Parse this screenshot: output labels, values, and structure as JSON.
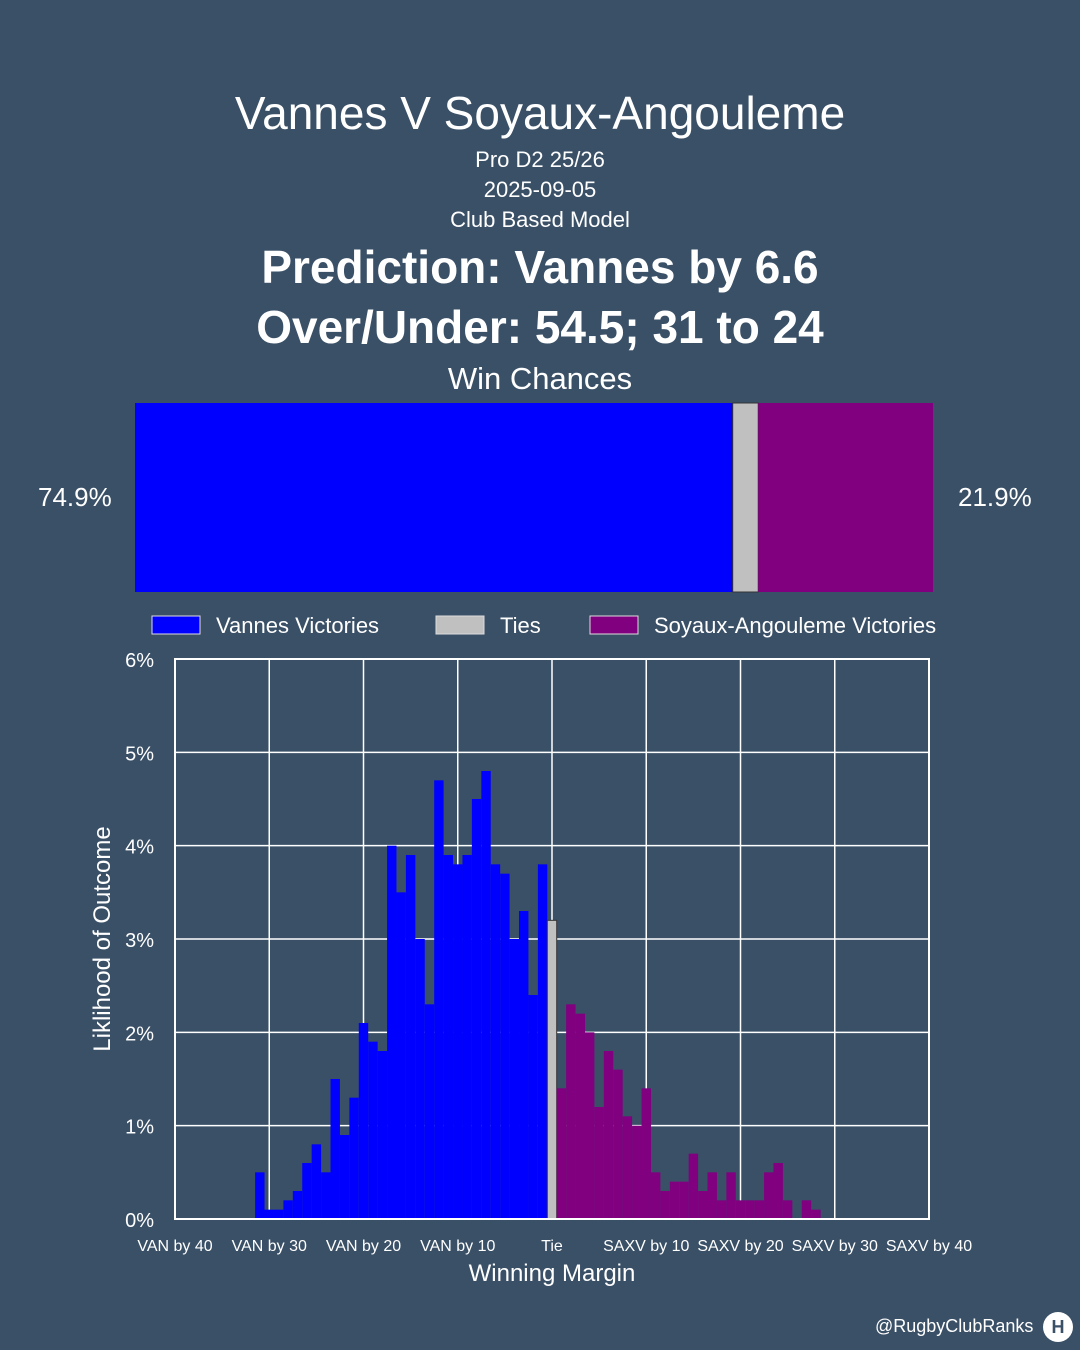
{
  "header": {
    "title": "Vannes V Soyaux-Angouleme",
    "competition": "Pro D2 25/26",
    "date": "2025-09-05",
    "model": "Club Based Model",
    "prediction": "Prediction: Vannes by 6.6",
    "over_under": "Over/Under: 54.5; 31 to 24"
  },
  "footer": {
    "handle": "@RugbyClubRanks",
    "logo_icon": "rugby-posts-icon"
  },
  "colors": {
    "background": "#3a5067",
    "home": "#0000ff",
    "tie": "#c0c0c0",
    "away": "#800080"
  },
  "chart_data": [
    {
      "type": "bar",
      "title": "Win Chances",
      "orientation": "horizontal-stacked",
      "segments": [
        {
          "name": "Vannes Victories",
          "value": 74.9,
          "label": "74.9%",
          "color": "#0000ff"
        },
        {
          "name": "Ties",
          "value": 3.2,
          "color": "#c0c0c0"
        },
        {
          "name": "Soyaux-Angouleme Victories",
          "value": 21.9,
          "label": "21.9%",
          "color": "#800080"
        }
      ],
      "legend": [
        "Vannes Victories",
        "Ties",
        "Soyaux-Angouleme Victories"
      ],
      "legend_placement": "bottom"
    },
    {
      "type": "bar",
      "xlabel": "Winning Margin",
      "ylabel": "Liklihood of Outcome",
      "xlim": [
        -40,
        40
      ],
      "ylim": [
        0,
        6
      ],
      "grid": true,
      "x_ticks": [
        -40,
        -30,
        -20,
        -10,
        0,
        10,
        20,
        30,
        40
      ],
      "x_tick_labels": [
        "VAN by 40",
        "VAN by 30",
        "VAN by 20",
        "VAN by 10",
        "Tie",
        "SAXV by 10",
        "SAXV by 20",
        "SAXV by 30",
        "SAXV by 40"
      ],
      "y_ticks": [
        0,
        1,
        2,
        3,
        4,
        5,
        6
      ],
      "y_tick_labels": [
        "0%",
        "1%",
        "2%",
        "3%",
        "4%",
        "5%",
        "6%"
      ],
      "series": [
        {
          "name": "Vannes Victories",
          "color": "#0000ff",
          "x": [
            -31,
            -30,
            -29,
            -28,
            -27,
            -26,
            -25,
            -24,
            -23,
            -22,
            -21,
            -20,
            -19,
            -18,
            -17,
            -16,
            -15,
            -14,
            -13,
            -12,
            -11,
            -10,
            -9,
            -8,
            -7,
            -6,
            -5,
            -4,
            -3,
            -2,
            -1
          ],
          "values": [
            0.5,
            0.1,
            0.1,
            0.2,
            0.3,
            0.6,
            0.8,
            0.5,
            1.5,
            0.9,
            1.3,
            2.1,
            1.9,
            1.8,
            4.0,
            3.5,
            3.9,
            3.0,
            2.3,
            4.7,
            3.9,
            3.8,
            3.9,
            4.5,
            4.8,
            3.8,
            3.7,
            3.0,
            3.3,
            2.4,
            3.8
          ]
        },
        {
          "name": "Ties",
          "color": "#c0c0c0",
          "x": [
            0
          ],
          "values": [
            3.2
          ]
        },
        {
          "name": "Soyaux-Angouleme Victories",
          "color": "#800080",
          "x": [
            1,
            2,
            3,
            4,
            5,
            6,
            7,
            8,
            9,
            10,
            11,
            12,
            13,
            14,
            15,
            16,
            17,
            18,
            19,
            20,
            21,
            22,
            23,
            24,
            25,
            26,
            27,
            28
          ],
          "values": [
            1.4,
            2.3,
            2.2,
            2.0,
            1.2,
            1.8,
            1.6,
            1.1,
            1.0,
            1.4,
            0.5,
            0.3,
            0.4,
            0.4,
            0.7,
            0.3,
            0.5,
            0.2,
            0.5,
            0.2,
            0.2,
            0.2,
            0.5,
            0.6,
            0.2,
            0.0,
            0.2,
            0.1
          ]
        }
      ]
    }
  ]
}
